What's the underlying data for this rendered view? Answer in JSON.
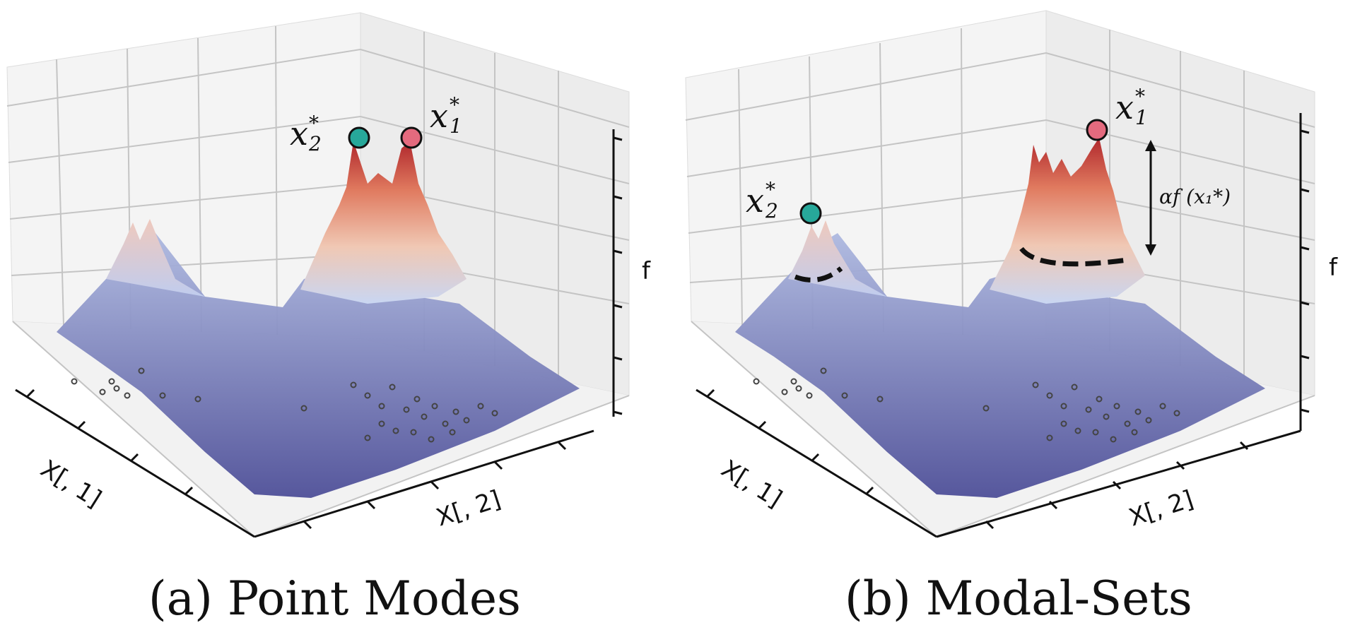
{
  "chart_data": [
    {
      "type": "surface",
      "panel_caption": "(a) Point Modes",
      "xlabel": "X[, 1]",
      "ylabel": "X[, 2]",
      "zlabel": "f",
      "colormap": "coolwarm",
      "colors": {
        "low": "#5b5fa8",
        "mid": "#dcdde8",
        "high": "#c0392b",
        "mode1": "#e46a7e",
        "mode2": "#27a89a"
      },
      "modes": [
        {
          "name": "x",
          "sub": "2",
          "sup": "*",
          "color": "#27a89a"
        },
        {
          "name": "x",
          "sub": "1",
          "sup": "*",
          "color": "#e46a7e"
        }
      ]
    },
    {
      "type": "surface",
      "panel_caption": "(b) Modal-Sets",
      "xlabel": "X[, 1]",
      "ylabel": "X[, 2]",
      "zlabel": "f",
      "colormap": "coolwarm",
      "colors": {
        "low": "#5b5fa8",
        "mid": "#dcdde8",
        "high": "#c0392b",
        "mode1": "#e46a7e",
        "mode2": "#27a89a"
      },
      "modes": [
        {
          "name": "x",
          "sub": "2",
          "sup": "*",
          "color": "#27a89a"
        },
        {
          "name": "x",
          "sub": "1",
          "sup": "*",
          "color": "#e46a7e"
        }
      ],
      "annotation": "αf (x₁*)"
    }
  ]
}
